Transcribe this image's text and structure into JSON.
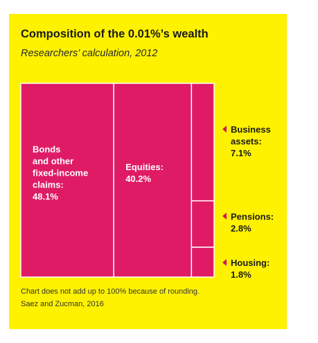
{
  "chart_data": {
    "type": "treemap",
    "title": "Composition of the 0.01%’s wealth",
    "subtitle": "Researchers’ calculation, 2012",
    "unit": "%",
    "segments": [
      {
        "name": "Bonds and other fixed-income claims",
        "label_lines": [
          "Bonds",
          "and other",
          "fixed-income",
          "claims:",
          "48.1%"
        ],
        "value": 48.1,
        "label_position": "inside"
      },
      {
        "name": "Equities",
        "label_lines": [
          "Equities:",
          "40.2%"
        ],
        "value": 40.2,
        "label_position": "inside"
      },
      {
        "name": "Business assets",
        "label_lines": [
          "Business",
          "assets:",
          "7.1%"
        ],
        "value": 7.1,
        "label_position": "outside-right"
      },
      {
        "name": "Pensions",
        "label_lines": [
          "Pensions:",
          "2.8%"
        ],
        "value": 2.8,
        "label_position": "outside-right"
      },
      {
        "name": "Housing",
        "label_lines": [
          "Housing:",
          "1.8%"
        ],
        "value": 1.8,
        "label_position": "outside-right"
      }
    ],
    "note": "Chart does not add up to 100% because of rounding.",
    "source": "Saez and Zucman, 2016"
  },
  "colors": {
    "background": "#fff200",
    "segment": "#df1b66",
    "arrow": "#d0145c"
  }
}
